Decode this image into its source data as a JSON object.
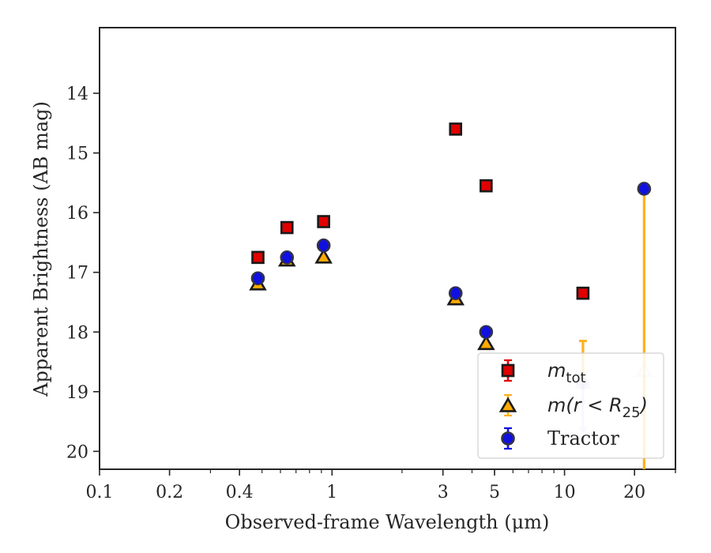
{
  "chart_data": {
    "type": "scatter",
    "xlabel": "Observed-frame Wavelength (μm)",
    "ylabel": "Apparent Brightness (AB mag)",
    "xscale": "log",
    "yaxis_inverted": true,
    "xlim": [
      0.1,
      30
    ],
    "ylim": [
      20.3,
      12.9
    ],
    "x_ticks": [
      {
        "value": 0.1,
        "label": "0.1"
      },
      {
        "value": 0.2,
        "label": "0.2"
      },
      {
        "value": 0.4,
        "label": "0.4"
      },
      {
        "value": 1,
        "label": "1"
      },
      {
        "value": 3,
        "label": "3"
      },
      {
        "value": 5,
        "label": "5"
      },
      {
        "value": 10,
        "label": "10"
      },
      {
        "value": 20,
        "label": "20"
      }
    ],
    "y_ticks": [
      {
        "value": 14,
        "label": "14"
      },
      {
        "value": 15,
        "label": "15"
      },
      {
        "value": 16,
        "label": "16"
      },
      {
        "value": 17,
        "label": "17"
      },
      {
        "value": 18,
        "label": "18"
      },
      {
        "value": 19,
        "label": "19"
      },
      {
        "value": 20,
        "label": "20"
      }
    ],
    "grid": false,
    "legend_position": "lower-right",
    "series": [
      {
        "name": "m_tot",
        "legend_label": {
          "main": "m",
          "sub": "tot"
        },
        "marker": "square",
        "color": "#e00000",
        "points": [
          {
            "x": 0.48,
            "y": 16.75
          },
          {
            "x": 0.64,
            "y": 16.25
          },
          {
            "x": 0.92,
            "y": 16.15
          },
          {
            "x": 3.4,
            "y": 14.6
          },
          {
            "x": 4.6,
            "y": 15.55
          },
          {
            "x": 12.0,
            "y": 17.35
          }
        ]
      },
      {
        "name": "m(r < R25)",
        "legend_label": {
          "main": "m(r < R",
          "sub": "25",
          "tail": ")"
        },
        "marker": "triangle",
        "color": "#ffaa00",
        "error_color": "#ffb020",
        "points": [
          {
            "x": 0.48,
            "y": 17.2
          },
          {
            "x": 0.64,
            "y": 16.8
          },
          {
            "x": 0.92,
            "y": 16.75
          },
          {
            "x": 3.4,
            "y": 17.45
          },
          {
            "x": 4.6,
            "y": 18.2
          },
          {
            "x": 12.0,
            "y": 18.85,
            "yerr_upper": 18.15,
            "faded": true
          },
          {
            "x": 22.0,
            "y": 18.65,
            "yerr_upper": 15.6,
            "yerr_lower": 20.3,
            "faded": true
          }
        ]
      },
      {
        "name": "Tractor",
        "legend_label": {
          "main": "Tractor"
        },
        "marker": "circle",
        "color": "#1010e0",
        "points": [
          {
            "x": 0.48,
            "y": 17.1
          },
          {
            "x": 0.64,
            "y": 16.75
          },
          {
            "x": 0.92,
            "y": 16.55
          },
          {
            "x": 3.4,
            "y": 17.35
          },
          {
            "x": 4.6,
            "y": 18.0
          },
          {
            "x": 12.0,
            "y": 18.85,
            "upper_limit_arrow_to": 19.7,
            "faded": true
          },
          {
            "x": 22.0,
            "y": 15.6
          }
        ]
      }
    ]
  }
}
